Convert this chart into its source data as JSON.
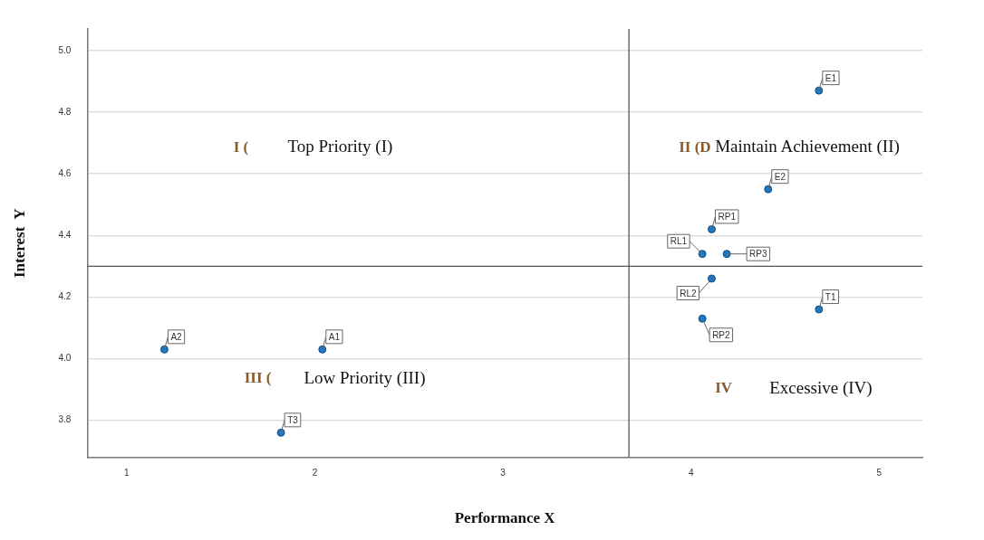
{
  "chart_data": {
    "type": "scatter",
    "xlabel": "Performance X",
    "ylabel": "Interest  Y",
    "x": [
      4.68,
      4.41,
      4.11,
      4.06,
      4.19,
      4.11,
      4.68,
      4.06,
      1.2,
      2.04,
      1.82
    ],
    "values": [
      4.87,
      4.55,
      4.42,
      4.34,
      4.34,
      4.26,
      4.16,
      4.13,
      4.03,
      4.03,
      3.76
    ],
    "value_labels": [
      "E1",
      "E2",
      "RP1",
      "RL1",
      "RP3",
      "RL2",
      "T1",
      "RP2",
      "A2",
      "A1",
      "T3"
    ],
    "color": "#1f78c1",
    "marker": "circle",
    "xlim": [
      0.79,
      5.23
    ],
    "xticks": [
      1,
      2,
      3,
      4,
      5
    ],
    "ylim": [
      3.68,
      5.07
    ],
    "yticks": [
      3.8,
      {
        "value": 4,
        "label": "4.0"
      },
      4.2,
      4.4,
      4.6,
      4.8,
      {
        "value": 5,
        "label": "5.0"
      }
    ],
    "grid": "y",
    "ref_lines": [
      {
        "axis": "x",
        "value": 3.67
      },
      {
        "axis": "y",
        "value": 4.3
      }
    ],
    "annotations": [
      "I (",
      "Top Priority (I)",
      "II (D",
      "Maintain Achievement (II)",
      "III (",
      "Low Priority (III)",
      "IV",
      "Excessive (IV)"
    ]
  }
}
